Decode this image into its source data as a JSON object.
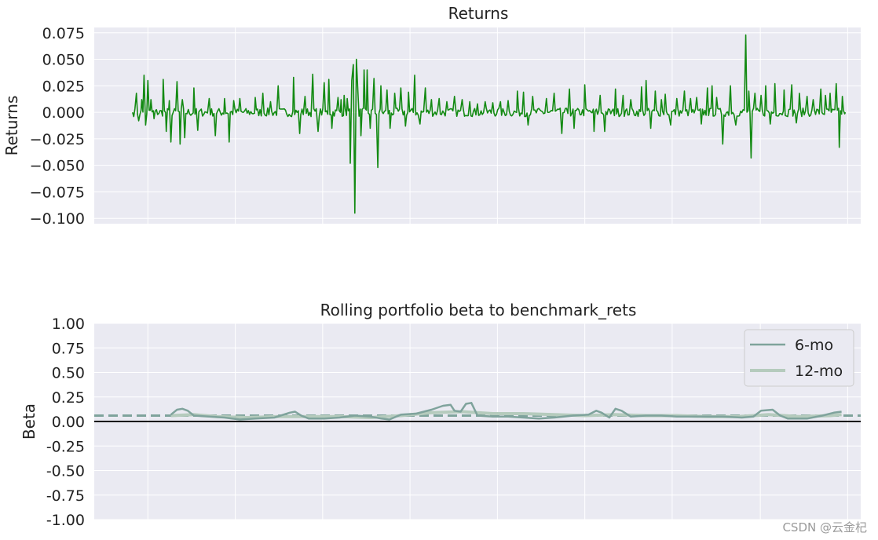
{
  "watermark": "CSDN @云金杞",
  "colors": {
    "returns_line": "#138a13",
    "beta_6mo": "#7fa39c",
    "beta_12mo": "#b5cbbd",
    "beta_mean": "#7fa39c",
    "zero_line": "#000000",
    "panel_bg": "#eaeaf2",
    "grid": "#ffffff"
  },
  "chart_data": [
    {
      "type": "line",
      "title": "Returns",
      "ylabel": "Returns",
      "xlabel": "",
      "ylim": [
        -0.105,
        0.08
      ],
      "yticks": [
        0.075,
        0.05,
        0.025,
        0.0,
        -0.025,
        -0.05,
        -0.075,
        -0.1
      ],
      "ytick_labels": [
        "0.075",
        "0.050",
        "0.025",
        "0.000",
        "−0.025",
        "−0.050",
        "−0.075",
        "−0.100"
      ],
      "xlim": [
        0,
        1000
      ],
      "x_gridlines": [
        70,
        184,
        298,
        412,
        526,
        640,
        754,
        869,
        983
      ],
      "x_start": 50,
      "x_end": 980,
      "grid": true,
      "series": [
        {
          "peaks": [
            [
              55,
              0.018
            ],
            [
              58,
              -0.008
            ],
            [
              62,
              0.012
            ],
            [
              65,
              0.035
            ],
            [
              67,
              -0.012
            ],
            [
              70,
              0.03
            ],
            [
              74,
              0.012
            ],
            [
              78,
              -0.006
            ],
            [
              90,
              0.031
            ],
            [
              94,
              -0.018
            ],
            [
              98,
              0.011
            ],
            [
              100,
              -0.028
            ],
            [
              108,
              0.029
            ],
            [
              112,
              -0.03
            ],
            [
              115,
              0.012
            ],
            [
              118,
              -0.024
            ],
            [
              130,
              0.023
            ],
            [
              135,
              -0.017
            ],
            [
              150,
              0.013
            ],
            [
              158,
              -0.022
            ],
            [
              170,
              0.013
            ],
            [
              176,
              -0.028
            ],
            [
              182,
              0.011
            ],
            [
              190,
              0.013
            ],
            [
              210,
              0.014
            ],
            [
              220,
              0.018
            ],
            [
              230,
              0.01
            ],
            [
              240,
              0.025
            ],
            [
              260,
              0.033
            ],
            [
              268,
              -0.02
            ],
            [
              275,
              0.015
            ],
            [
              285,
              0.036
            ],
            [
              292,
              -0.018
            ],
            [
              300,
              0.028
            ],
            [
              306,
              0.031
            ],
            [
              310,
              -0.015
            ],
            [
              318,
              0.014
            ],
            [
              322,
              0.012
            ],
            [
              326,
              0.016
            ],
            [
              330,
              0.013
            ],
            [
              334,
              -0.048
            ],
            [
              336,
              0.03
            ],
            [
              338,
              0.045
            ],
            [
              340,
              -0.095
            ],
            [
              342,
              0.05
            ],
            [
              344,
              0.02
            ],
            [
              348,
              -0.022
            ],
            [
              352,
              0.04
            ],
            [
              356,
              0.04
            ],
            [
              360,
              -0.015
            ],
            [
              365,
              0.032
            ],
            [
              370,
              -0.052
            ],
            [
              374,
              0.025
            ],
            [
              382,
              0.021
            ],
            [
              386,
              -0.015
            ],
            [
              392,
              0.018
            ],
            [
              400,
              0.023
            ],
            [
              406,
              -0.013
            ],
            [
              410,
              0.019
            ],
            [
              418,
              0.035
            ],
            [
              425,
              -0.011
            ],
            [
              432,
              0.023
            ],
            [
              440,
              0.012
            ],
            [
              450,
              0.013
            ],
            [
              460,
              0.01
            ],
            [
              470,
              0.015
            ],
            [
              480,
              0.012
            ],
            [
              490,
              0.01
            ],
            [
              500,
              0.008
            ],
            [
              510,
              0.01
            ],
            [
              520,
              0.009
            ],
            [
              530,
              0.01
            ],
            [
              540,
              0.011
            ],
            [
              552,
              0.02
            ],
            [
              560,
              0.019
            ],
            [
              566,
              -0.012
            ],
            [
              572,
              0.015
            ],
            [
              590,
              0.013
            ],
            [
              600,
              0.018
            ],
            [
              610,
              -0.02
            ],
            [
              620,
              0.022
            ],
            [
              626,
              -0.015
            ],
            [
              640,
              0.026
            ],
            [
              652,
              -0.018
            ],
            [
              660,
              0.016
            ],
            [
              666,
              -0.018
            ],
            [
              680,
              0.022
            ],
            [
              690,
              0.016
            ],
            [
              700,
              0.012
            ],
            [
              714,
              0.024
            ],
            [
              720,
              0.03
            ],
            [
              726,
              -0.015
            ],
            [
              732,
              0.02
            ],
            [
              740,
              0.012
            ],
            [
              745,
              0.017
            ],
            [
              752,
              -0.012
            ],
            [
              760,
              0.013
            ],
            [
              770,
              0.02
            ],
            [
              778,
              0.013
            ],
            [
              786,
              0.014
            ],
            [
              792,
              -0.011
            ],
            [
              800,
              0.023
            ],
            [
              806,
              0.025
            ],
            [
              812,
              0.014
            ],
            [
              820,
              -0.03
            ],
            [
              830,
              0.025
            ],
            [
              837,
              -0.012
            ],
            [
              850,
              0.073
            ],
            [
              854,
              0.02
            ],
            [
              857,
              -0.043
            ],
            [
              862,
              0.018
            ],
            [
              870,
              0.016
            ],
            [
              876,
              0.025
            ],
            [
              882,
              -0.011
            ],
            [
              888,
              0.027
            ],
            [
              900,
              0.021
            ],
            [
              910,
              0.026
            ],
            [
              916,
              -0.01
            ],
            [
              920,
              0.018
            ],
            [
              930,
              0.015
            ],
            [
              938,
              0.012
            ],
            [
              948,
              0.022
            ],
            [
              954,
              0.016
            ],
            [
              960,
              0.018
            ],
            [
              968,
              0.027
            ],
            [
              972,
              -0.033
            ],
            [
              976,
              0.015
            ],
            [
              980,
              0.0
            ]
          ]
        }
      ]
    },
    {
      "type": "line",
      "title": "Rolling portfolio beta to benchmark_rets",
      "ylabel": "Beta",
      "xlabel": "",
      "ylim": [
        -1.0,
        1.0
      ],
      "yticks": [
        1.0,
        0.75,
        0.5,
        0.25,
        0.0,
        -0.25,
        -0.5,
        -0.75,
        -1.0
      ],
      "ytick_labels": [
        "1.00",
        "0.75",
        "0.50",
        "0.25",
        "0.00",
        "-0.25",
        "-0.50",
        "-0.75",
        "-1.00"
      ],
      "xlim": [
        0,
        1000
      ],
      "x_gridlines": [
        70,
        184,
        298,
        412,
        526,
        640,
        754,
        869,
        983
      ],
      "grid": true,
      "legend_position": "top-right",
      "mean_beta": 0.06,
      "series": [
        {
          "name": "6-mo",
          "points": [
            [
              100,
              0.07
            ],
            [
              108,
              0.12
            ],
            [
              115,
              0.13
            ],
            [
              122,
              0.11
            ],
            [
              130,
              0.06
            ],
            [
              150,
              0.05
            ],
            [
              170,
              0.04
            ],
            [
              190,
              0.02
            ],
            [
              210,
              0.03
            ],
            [
              235,
              0.04
            ],
            [
              255,
              0.09
            ],
            [
              262,
              0.1
            ],
            [
              270,
              0.06
            ],
            [
              280,
              0.03
            ],
            [
              300,
              0.03
            ],
            [
              320,
              0.04
            ],
            [
              340,
              0.06
            ],
            [
              360,
              0.05
            ],
            [
              375,
              0.03
            ],
            [
              385,
              0.02
            ],
            [
              400,
              0.07
            ],
            [
              420,
              0.08
            ],
            [
              440,
              0.12
            ],
            [
              455,
              0.16
            ],
            [
              465,
              0.17
            ],
            [
              470,
              0.11
            ],
            [
              478,
              0.1
            ],
            [
              485,
              0.18
            ],
            [
              492,
              0.19
            ],
            [
              500,
              0.06
            ],
            [
              520,
              0.05
            ],
            [
              540,
              0.05
            ],
            [
              560,
              0.04
            ],
            [
              580,
              0.03
            ],
            [
              600,
              0.04
            ],
            [
              625,
              0.06
            ],
            [
              645,
              0.07
            ],
            [
              655,
              0.11
            ],
            [
              662,
              0.09
            ],
            [
              672,
              0.04
            ],
            [
              680,
              0.13
            ],
            [
              688,
              0.11
            ],
            [
              700,
              0.05
            ],
            [
              720,
              0.06
            ],
            [
              740,
              0.06
            ],
            [
              760,
              0.05
            ],
            [
              790,
              0.05
            ],
            [
              820,
              0.05
            ],
            [
              845,
              0.04
            ],
            [
              860,
              0.05
            ],
            [
              870,
              0.11
            ],
            [
              885,
              0.12
            ],
            [
              895,
              0.06
            ],
            [
              905,
              0.03
            ],
            [
              930,
              0.03
            ],
            [
              950,
              0.06
            ],
            [
              965,
              0.09
            ],
            [
              975,
              0.1
            ]
          ]
        },
        {
          "name": "12-mo",
          "points": [
            [
              100,
              0.06
            ],
            [
              130,
              0.07
            ],
            [
              160,
              0.05
            ],
            [
              200,
              0.04
            ],
            [
              240,
              0.05
            ],
            [
              280,
              0.05
            ],
            [
              320,
              0.05
            ],
            [
              360,
              0.04
            ],
            [
              400,
              0.06
            ],
            [
              440,
              0.09
            ],
            [
              480,
              0.1
            ],
            [
              520,
              0.08
            ],
            [
              560,
              0.08
            ],
            [
              600,
              0.07
            ],
            [
              640,
              0.06
            ],
            [
              680,
              0.07
            ],
            [
              720,
              0.06
            ],
            [
              760,
              0.06
            ],
            [
              800,
              0.05
            ],
            [
              840,
              0.05
            ],
            [
              880,
              0.07
            ],
            [
              920,
              0.05
            ],
            [
              960,
              0.06
            ],
            [
              975,
              0.07
            ]
          ]
        }
      ]
    }
  ]
}
